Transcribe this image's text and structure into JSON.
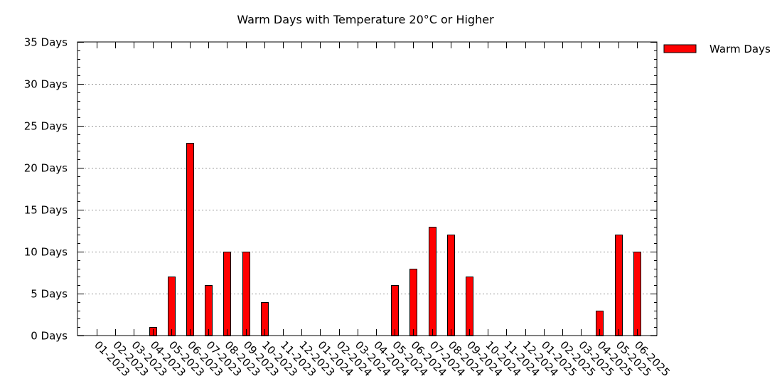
{
  "chart_data": {
    "type": "bar",
    "title": "Warm Days with Temperature 20°C or Higher",
    "xlabel": "",
    "ylabel": "",
    "categories": [
      "01-2023",
      "02-2023",
      "03-2023",
      "04-2023",
      "05-2023",
      "06-2023",
      "07-2023",
      "08-2023",
      "09-2023",
      "10-2023",
      "11-2023",
      "12-2023",
      "01-2024",
      "02-2024",
      "03-2024",
      "04-2024",
      "05-2024",
      "06-2024",
      "07-2024",
      "08-2024",
      "09-2024",
      "10-2024",
      "11-2024",
      "12-2024",
      "01-2025",
      "02-2025",
      "03-2025",
      "04-2025",
      "05-2025",
      "06-2025"
    ],
    "series": [
      {
        "name": "Warm Days",
        "color": "#ff0000",
        "values": [
          0,
          0,
          0,
          1,
          7,
          23,
          6,
          10,
          10,
          4,
          0,
          0,
          0,
          0,
          0,
          0,
          6,
          8,
          13,
          12,
          7,
          0,
          0,
          0,
          0,
          0,
          0,
          3,
          12,
          10
        ]
      }
    ],
    "ylim": [
      0,
      35
    ],
    "yticks": [
      0,
      5,
      10,
      15,
      20,
      25,
      30,
      35
    ],
    "ytick_labels": [
      "0 Days",
      "5 Days",
      "10 Days",
      "15 Days",
      "20 Days",
      "25 Days",
      "30 Days",
      "35 Days"
    ],
    "grid": "horizontal-dotted",
    "legend_position": "top-right-outside"
  }
}
